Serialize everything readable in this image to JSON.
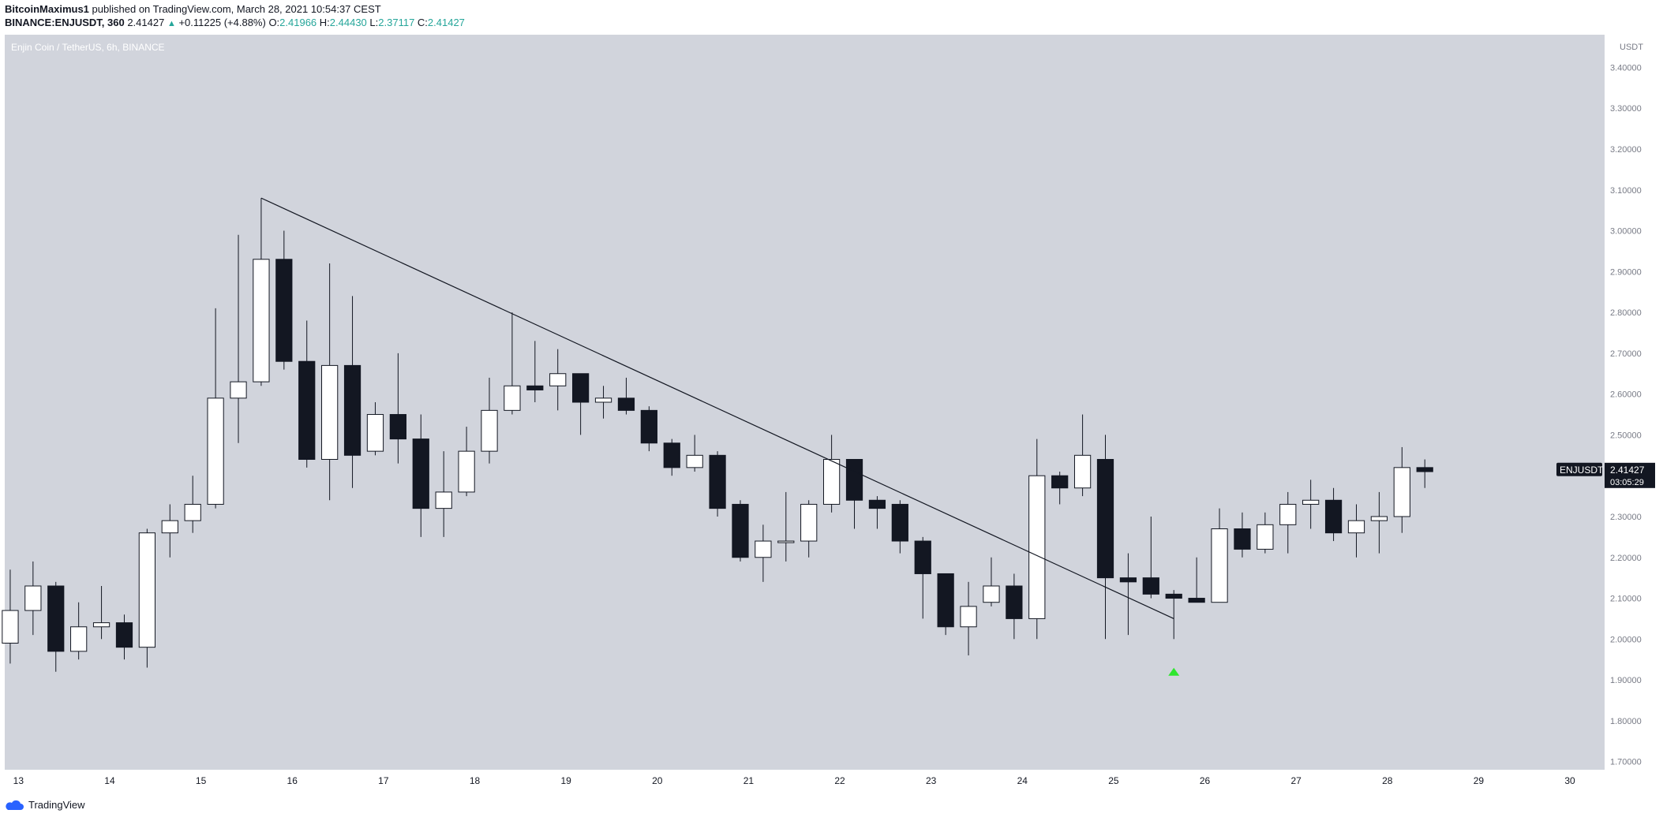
{
  "header": {
    "publisher": "BitcoinMaximus1",
    "published_text": "published on TradingView.com, March 28, 2021 10:54:37 CEST",
    "symbol_line": "BINANCE:ENJUSDT, 360",
    "last": "2.41427",
    "change": "+0.11225 (+4.88%)",
    "o_label": "O:",
    "o": "2.41966",
    "h_label": "H:",
    "h": "2.44430",
    "l_label": "L:",
    "l": "2.37117",
    "c_label": "C:",
    "c": "2.41427"
  },
  "chart_title": "Enjin Coin / TetherUS, 6h, BINANCE",
  "axis_currency": "USDT",
  "price_label": {
    "symbol": "ENJUSDT",
    "price": "2.41427",
    "countdown": "03:05:29"
  },
  "footer": {
    "brand": "TradingView"
  },
  "colors": {
    "background": "#d1d4dc",
    "axis_bg": "#ffffff",
    "up_body": "#ffffff",
    "down_body": "#131722",
    "wick": "#131722",
    "trendline": "#131722",
    "signal": "#2ee62e"
  },
  "chart_data": {
    "type": "candlestick",
    "title": "Enjin Coin / TetherUS, 6h, BINANCE",
    "ylabel": "USDT",
    "ylim": [
      1.68,
      3.48
    ],
    "y_ticks": [
      "1.70000",
      "1.80000",
      "1.90000",
      "2.00000",
      "2.10000",
      "2.20000",
      "2.30000",
      "2.40000",
      "2.50000",
      "2.60000",
      "2.70000",
      "2.80000",
      "2.90000",
      "3.00000",
      "3.10000",
      "3.20000",
      "3.30000",
      "3.40000"
    ],
    "x_ticks": [
      "13",
      "14",
      "15",
      "16",
      "17",
      "18",
      "19",
      "20",
      "21",
      "22",
      "23",
      "24",
      "25",
      "26",
      "27",
      "28",
      "29",
      "30"
    ],
    "x_unit": "day (March 2021), 6h candles",
    "x_range": [
      12.85,
      30.38
    ],
    "grid": false,
    "candles": [
      {
        "t": 12.91,
        "o": 1.99,
        "h": 2.17,
        "l": 1.94,
        "c": 2.07
      },
      {
        "t": 13.16,
        "o": 2.07,
        "h": 2.19,
        "l": 2.01,
        "c": 2.13
      },
      {
        "t": 13.41,
        "o": 2.13,
        "h": 2.14,
        "l": 1.92,
        "c": 1.97
      },
      {
        "t": 13.66,
        "o": 1.97,
        "h": 2.09,
        "l": 1.95,
        "c": 2.03
      },
      {
        "t": 13.91,
        "o": 2.03,
        "h": 2.13,
        "l": 2.0,
        "c": 2.04
      },
      {
        "t": 14.16,
        "o": 2.04,
        "h": 2.06,
        "l": 1.95,
        "c": 1.98
      },
      {
        "t": 14.41,
        "o": 1.98,
        "h": 2.27,
        "l": 1.93,
        "c": 2.26
      },
      {
        "t": 14.66,
        "o": 2.26,
        "h": 2.33,
        "l": 2.2,
        "c": 2.29
      },
      {
        "t": 14.91,
        "o": 2.29,
        "h": 2.4,
        "l": 2.26,
        "c": 2.33
      },
      {
        "t": 15.16,
        "o": 2.33,
        "h": 2.81,
        "l": 2.32,
        "c": 2.59
      },
      {
        "t": 15.41,
        "o": 2.59,
        "h": 2.99,
        "l": 2.48,
        "c": 2.63
      },
      {
        "t": 15.66,
        "o": 2.63,
        "h": 3.08,
        "l": 2.62,
        "c": 2.93
      },
      {
        "t": 15.91,
        "o": 2.93,
        "h": 3.0,
        "l": 2.66,
        "c": 2.68
      },
      {
        "t": 16.16,
        "o": 2.68,
        "h": 2.78,
        "l": 2.42,
        "c": 2.44
      },
      {
        "t": 16.41,
        "o": 2.44,
        "h": 2.92,
        "l": 2.34,
        "c": 2.67
      },
      {
        "t": 16.66,
        "o": 2.67,
        "h": 2.84,
        "l": 2.37,
        "c": 2.45
      },
      {
        "t": 16.91,
        "o": 2.46,
        "h": 2.58,
        "l": 2.45,
        "c": 2.55
      },
      {
        "t": 17.16,
        "o": 2.55,
        "h": 2.7,
        "l": 2.43,
        "c": 2.49
      },
      {
        "t": 17.41,
        "o": 2.49,
        "h": 2.55,
        "l": 2.25,
        "c": 2.32
      },
      {
        "t": 17.66,
        "o": 2.32,
        "h": 2.46,
        "l": 2.25,
        "c": 2.36
      },
      {
        "t": 17.91,
        "o": 2.36,
        "h": 2.52,
        "l": 2.35,
        "c": 2.46
      },
      {
        "t": 18.16,
        "o": 2.46,
        "h": 2.64,
        "l": 2.43,
        "c": 2.56
      },
      {
        "t": 18.41,
        "o": 2.56,
        "h": 2.8,
        "l": 2.55,
        "c": 2.62
      },
      {
        "t": 18.66,
        "o": 2.62,
        "h": 2.73,
        "l": 2.58,
        "c": 2.61
      },
      {
        "t": 18.91,
        "o": 2.62,
        "h": 2.71,
        "l": 2.56,
        "c": 2.65
      },
      {
        "t": 19.16,
        "o": 2.65,
        "h": 2.65,
        "l": 2.5,
        "c": 2.58
      },
      {
        "t": 19.41,
        "o": 2.58,
        "h": 2.62,
        "l": 2.54,
        "c": 2.59
      },
      {
        "t": 19.66,
        "o": 2.59,
        "h": 2.64,
        "l": 2.55,
        "c": 2.56
      },
      {
        "t": 19.91,
        "o": 2.56,
        "h": 2.57,
        "l": 2.46,
        "c": 2.48
      },
      {
        "t": 20.16,
        "o": 2.48,
        "h": 2.49,
        "l": 2.4,
        "c": 2.42
      },
      {
        "t": 20.41,
        "o": 2.42,
        "h": 2.5,
        "l": 2.41,
        "c": 2.45
      },
      {
        "t": 20.66,
        "o": 2.45,
        "h": 2.46,
        "l": 2.3,
        "c": 2.32
      },
      {
        "t": 20.91,
        "o": 2.33,
        "h": 2.34,
        "l": 2.19,
        "c": 2.2
      },
      {
        "t": 21.16,
        "o": 2.2,
        "h": 2.28,
        "l": 2.14,
        "c": 2.24
      },
      {
        "t": 21.41,
        "o": 2.24,
        "h": 2.36,
        "l": 2.19,
        "c": 2.24
      },
      {
        "t": 21.66,
        "o": 2.24,
        "h": 2.34,
        "l": 2.2,
        "c": 2.33
      },
      {
        "t": 21.91,
        "o": 2.33,
        "h": 2.5,
        "l": 2.31,
        "c": 2.44
      },
      {
        "t": 22.16,
        "o": 2.44,
        "h": 2.44,
        "l": 2.27,
        "c": 2.34
      },
      {
        "t": 22.41,
        "o": 2.34,
        "h": 2.35,
        "l": 2.27,
        "c": 2.32
      },
      {
        "t": 22.66,
        "o": 2.33,
        "h": 2.34,
        "l": 2.21,
        "c": 2.24
      },
      {
        "t": 22.91,
        "o": 2.24,
        "h": 2.25,
        "l": 2.05,
        "c": 2.16
      },
      {
        "t": 23.16,
        "o": 2.16,
        "h": 2.16,
        "l": 2.01,
        "c": 2.03
      },
      {
        "t": 23.41,
        "o": 2.03,
        "h": 2.14,
        "l": 1.96,
        "c": 2.08
      },
      {
        "t": 23.66,
        "o": 2.09,
        "h": 2.2,
        "l": 2.08,
        "c": 2.13
      },
      {
        "t": 23.91,
        "o": 2.13,
        "h": 2.16,
        "l": 2.0,
        "c": 2.05
      },
      {
        "t": 24.16,
        "o": 2.05,
        "h": 2.49,
        "l": 2.0,
        "c": 2.4
      },
      {
        "t": 24.41,
        "o": 2.4,
        "h": 2.41,
        "l": 2.33,
        "c": 2.37
      },
      {
        "t": 24.66,
        "o": 2.37,
        "h": 2.55,
        "l": 2.35,
        "c": 2.45
      },
      {
        "t": 24.91,
        "o": 2.44,
        "h": 2.5,
        "l": 2.0,
        "c": 2.15
      },
      {
        "t": 25.16,
        "o": 2.15,
        "h": 2.21,
        "l": 2.01,
        "c": 2.14
      },
      {
        "t": 25.41,
        "o": 2.15,
        "h": 2.3,
        "l": 2.1,
        "c": 2.11
      },
      {
        "t": 25.66,
        "o": 2.11,
        "h": 2.12,
        "l": 2.0,
        "c": 2.1
      },
      {
        "t": 25.91,
        "o": 2.1,
        "h": 2.2,
        "l": 2.09,
        "c": 2.09
      },
      {
        "t": 26.16,
        "o": 2.09,
        "h": 2.32,
        "l": 2.09,
        "c": 2.27
      },
      {
        "t": 26.41,
        "o": 2.27,
        "h": 2.31,
        "l": 2.2,
        "c": 2.22
      },
      {
        "t": 26.66,
        "o": 2.22,
        "h": 2.31,
        "l": 2.21,
        "c": 2.28
      },
      {
        "t": 26.91,
        "o": 2.28,
        "h": 2.36,
        "l": 2.21,
        "c": 2.33
      },
      {
        "t": 27.16,
        "o": 2.33,
        "h": 2.39,
        "l": 2.27,
        "c": 2.34
      },
      {
        "t": 27.41,
        "o": 2.34,
        "h": 2.37,
        "l": 2.24,
        "c": 2.26
      },
      {
        "t": 27.66,
        "o": 2.26,
        "h": 2.33,
        "l": 2.2,
        "c": 2.29
      },
      {
        "t": 27.91,
        "o": 2.29,
        "h": 2.36,
        "l": 2.21,
        "c": 2.3
      },
      {
        "t": 28.16,
        "o": 2.3,
        "h": 2.47,
        "l": 2.26,
        "c": 2.42
      },
      {
        "t": 28.41,
        "o": 2.42,
        "h": 2.44,
        "l": 2.37,
        "c": 2.41
      }
    ],
    "trendline": {
      "start": {
        "t": 15.66,
        "price": 3.08
      },
      "end": {
        "t": 25.66,
        "price": 2.05
      }
    },
    "signal_marker": {
      "t": 25.66,
      "price": 1.92,
      "shape": "triangle-up"
    }
  }
}
